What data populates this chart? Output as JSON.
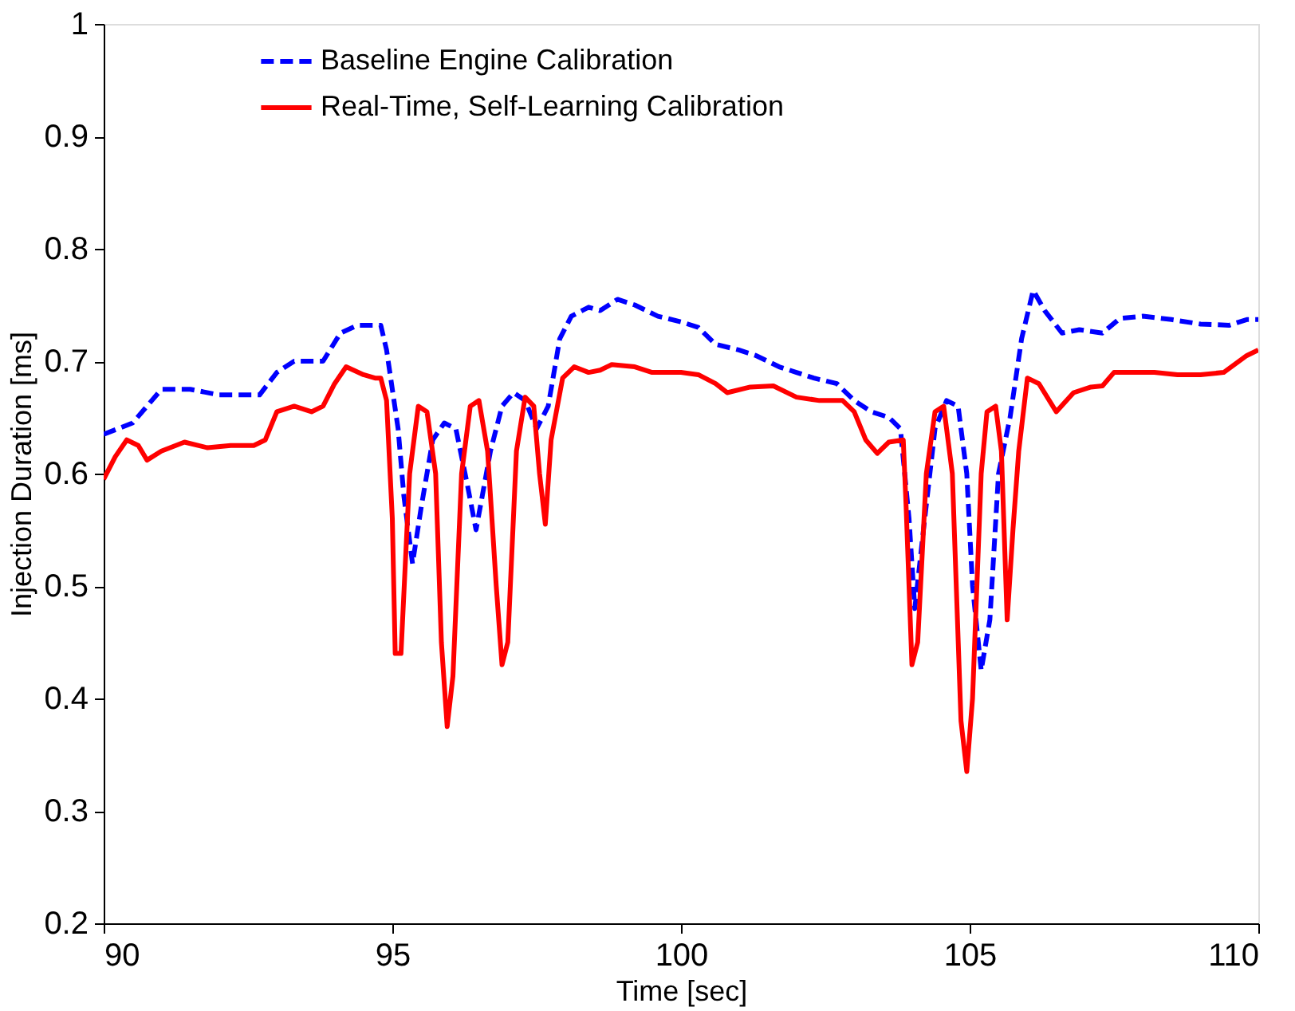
{
  "chart_data": {
    "type": "line",
    "xlabel": "Time [sec]",
    "ylabel": "Injection Duration [ms]",
    "xlim": [
      90,
      110
    ],
    "xticks": [
      90,
      95,
      100,
      105,
      110
    ],
    "ylim": [
      0.2,
      1
    ],
    "yticks": [
      0.2,
      0.3,
      0.4,
      0.5,
      0.6,
      0.7,
      0.8,
      0.9,
      {
        "value": 1,
        "label": "1"
      }
    ],
    "grid": false,
    "legend": "top",
    "marker": "none",
    "series": [
      {
        "name": "Baseline Engine Calibration",
        "color": "#0000ff",
        "line_style": "dashed",
        "x": [
          90,
          90.5,
          91,
          91.5,
          92,
          92.7,
          93,
          93.3,
          93.8,
          94.1,
          94.4,
          94.8,
          94.9,
          95.1,
          95.2,
          95.35,
          95.5,
          95.7,
          95.9,
          96.1,
          96.3,
          96.45,
          96.7,
          96.9,
          97.1,
          97.3,
          97.5,
          97.7,
          97.9,
          98.1,
          98.4,
          98.6,
          98.9,
          99.2,
          99.6,
          100,
          100.3,
          100.6,
          101,
          101.3,
          101.7,
          102,
          102.3,
          102.7,
          103,
          103.3,
          103.6,
          103.8,
          103.95,
          104.05,
          104.2,
          104.4,
          104.6,
          104.8,
          104.95,
          105.05,
          105.2,
          105.35,
          105.5,
          105.7,
          105.9,
          106.1,
          106.3,
          106.6,
          106.9,
          107.3,
          107.6,
          108,
          108.5,
          109,
          109.5,
          109.8,
          110
        ],
        "values": [
          0.635,
          0.645,
          0.675,
          0.675,
          0.67,
          0.67,
          0.69,
          0.7,
          0.7,
          0.725,
          0.732,
          0.732,
          0.71,
          0.64,
          0.58,
          0.52,
          0.57,
          0.63,
          0.645,
          0.64,
          0.59,
          0.55,
          0.62,
          0.66,
          0.672,
          0.665,
          0.64,
          0.66,
          0.72,
          0.74,
          0.748,
          0.745,
          0.755,
          0.75,
          0.74,
          0.735,
          0.73,
          0.715,
          0.71,
          0.705,
          0.695,
          0.69,
          0.685,
          0.68,
          0.665,
          0.655,
          0.65,
          0.64,
          0.56,
          0.48,
          0.55,
          0.64,
          0.665,
          0.66,
          0.6,
          0.5,
          0.425,
          0.47,
          0.6,
          0.65,
          0.72,
          0.763,
          0.745,
          0.725,
          0.728,
          0.725,
          0.738,
          0.74,
          0.737,
          0.733,
          0.732,
          0.737,
          0.737
        ]
      },
      {
        "name": "Real-Time, Self-Learning Calibration",
        "color": "#ff0000",
        "line_style": "solid",
        "x": [
          90,
          90.2,
          90.4,
          90.6,
          90.75,
          91,
          91.4,
          91.8,
          92.2,
          92.6,
          92.8,
          93,
          93.3,
          93.6,
          93.8,
          94,
          94.2,
          94.5,
          94.7,
          94.8,
          94.9,
          95.0,
          95.05,
          95.15,
          95.3,
          95.45,
          95.6,
          95.75,
          95.85,
          95.95,
          96.05,
          96.2,
          96.35,
          96.5,
          96.65,
          96.8,
          96.9,
          97.0,
          97.15,
          97.3,
          97.45,
          97.55,
          97.65,
          97.75,
          97.95,
          98.15,
          98.4,
          98.6,
          98.8,
          99.2,
          99.5,
          100,
          100.3,
          100.6,
          100.8,
          101.2,
          101.6,
          102,
          102.4,
          102.8,
          103,
          103.2,
          103.4,
          103.6,
          103.85,
          103.9,
          104.0,
          104.1,
          104.25,
          104.4,
          104.55,
          104.7,
          104.85,
          104.95,
          105.05,
          105.2,
          105.3,
          105.45,
          105.55,
          105.65,
          105.75,
          105.85,
          106.0,
          106.2,
          106.5,
          106.8,
          107.1,
          107.3,
          107.5,
          107.8,
          108.2,
          108.6,
          109,
          109.4,
          109.8,
          110
        ],
        "values": [
          0.595,
          0.615,
          0.63,
          0.625,
          0.612,
          0.62,
          0.628,
          0.623,
          0.625,
          0.625,
          0.63,
          0.655,
          0.66,
          0.655,
          0.66,
          0.68,
          0.695,
          0.688,
          0.685,
          0.685,
          0.665,
          0.56,
          0.44,
          0.44,
          0.6,
          0.66,
          0.655,
          0.6,
          0.45,
          0.375,
          0.42,
          0.6,
          0.66,
          0.665,
          0.62,
          0.5,
          0.43,
          0.45,
          0.62,
          0.668,
          0.66,
          0.6,
          0.555,
          0.63,
          0.685,
          0.695,
          0.69,
          0.692,
          0.697,
          0.695,
          0.69,
          0.69,
          0.688,
          0.68,
          0.672,
          0.677,
          0.678,
          0.668,
          0.665,
          0.665,
          0.655,
          0.63,
          0.618,
          0.628,
          0.63,
          0.57,
          0.43,
          0.45,
          0.6,
          0.655,
          0.66,
          0.6,
          0.38,
          0.335,
          0.4,
          0.6,
          0.655,
          0.66,
          0.62,
          0.47,
          0.55,
          0.62,
          0.685,
          0.68,
          0.655,
          0.672,
          0.677,
          0.678,
          0.69,
          0.69,
          0.69,
          0.688,
          0.688,
          0.69,
          0.705,
          0.71
        ]
      }
    ]
  }
}
